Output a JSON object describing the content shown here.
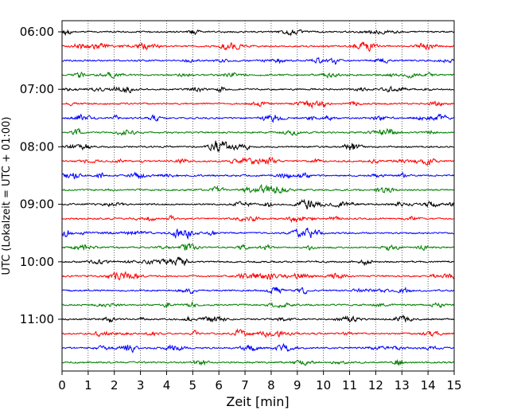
{
  "chart_data": {
    "type": "line",
    "title": "",
    "xlabel": "Zeit  [min]",
    "ylabel": "UTC (Lokalzeit = UTC + 01:00)",
    "xlim": [
      0,
      15
    ],
    "x_ticks": [
      "0",
      "1",
      "2",
      "3",
      "4",
      "5",
      "6",
      "7",
      "8",
      "9",
      "10",
      "11",
      "12",
      "13",
      "14",
      "15"
    ],
    "y_tick_labels": [
      "06:00",
      "07:00",
      "08:00",
      "09:00",
      "10:00",
      "11:00"
    ],
    "grid": "vertical dotted lines at each minute",
    "trace_interval_minutes": 15,
    "trace_start": "06:00",
    "trace_count": 24,
    "trace_colors": [
      "#000000",
      "#ff0000",
      "#0000ff",
      "#007f00"
    ],
    "legend": "none"
  }
}
